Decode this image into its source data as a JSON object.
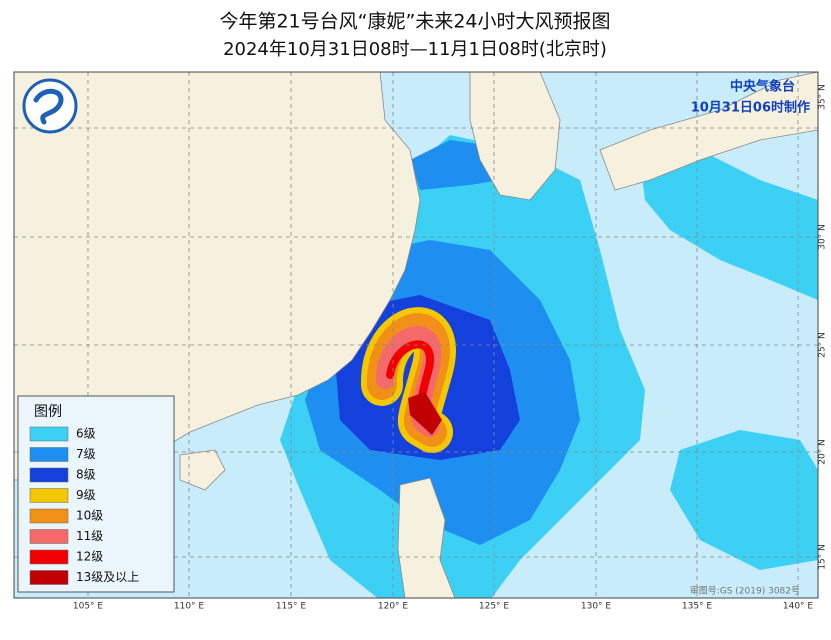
{
  "header": {
    "title": "今年第21号台风“康妮”未来24小时大风预报图",
    "subtitle": "2024年10月31日08时—11月1日08时(北京时)"
  },
  "issuer": {
    "name": "中央气象台",
    "made": "10月31日06时制作"
  },
  "legend": {
    "title": "图例",
    "items": [
      {
        "label": "6级",
        "color": "#3cd0f4"
      },
      {
        "label": "7级",
        "color": "#1e8ef0"
      },
      {
        "label": "8级",
        "color": "#1440dc"
      },
      {
        "label": "9级",
        "color": "#f4c800"
      },
      {
        "label": "10级",
        "color": "#f09018"
      },
      {
        "label": "11级",
        "color": "#f46a6a"
      },
      {
        "label": "12级",
        "color": "#f00000"
      },
      {
        "label": "13级及以上",
        "color": "#c00000"
      }
    ]
  },
  "axes": {
    "longitude": [
      "105° E",
      "110° E",
      "115° E",
      "120° E",
      "125° E",
      "130° E",
      "135° E",
      "140° E"
    ],
    "latitude": [
      "35° N",
      "30° N",
      "25° N",
      "20° N",
      "15° N"
    ]
  },
  "map_review_number": "审图号:GS (2019) 3082号"
}
